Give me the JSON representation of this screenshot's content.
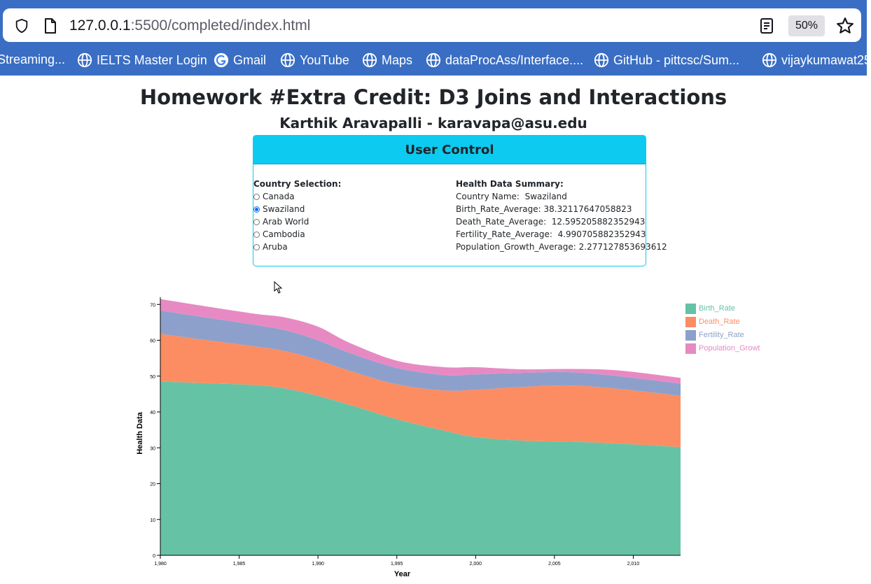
{
  "browser": {
    "url_host": "127.0.0.1",
    "url_path": ":5500/completed/index.html",
    "zoom": "50%",
    "bookmarks": [
      {
        "label": "Streaming...",
        "icon": "none"
      },
      {
        "label": "IELTS Master Login",
        "icon": "globe-icon"
      },
      {
        "label": "Gmail",
        "icon": "google-icon"
      },
      {
        "label": "YouTube",
        "icon": "globe-icon"
      },
      {
        "label": "Maps",
        "icon": "globe-icon"
      },
      {
        "label": "dataProcAss/Interface....",
        "icon": "globe-icon"
      },
      {
        "label": "GitHub - pittcsc/Sum...",
        "icon": "globe-icon"
      },
      {
        "label": "vijaykumawat25",
        "icon": "globe-icon"
      }
    ]
  },
  "page": {
    "title": "Homework #Extra Credit: D3 Joins and Interactions",
    "subtitle": "Karthik Aravapalli - karavapa@asu.edu"
  },
  "control": {
    "header": "User Control",
    "selection_label": "Country Selection:",
    "countries": [
      "Canada",
      "Swaziland",
      "Arab World",
      "Cambodia",
      "Aruba"
    ],
    "selected": "Swaziland",
    "summary_label": "Health Data Summary:",
    "summary": [
      {
        "key": "Country Name:",
        "value": "Swaziland"
      },
      {
        "key": "Birth_Rate_Average:",
        "value": "38.32117647058823"
      },
      {
        "key": "Death_Rate_Average:",
        "value": "12.595205882352943"
      },
      {
        "key": "Fertility_Rate_Average:",
        "value": "4.990705882352943"
      },
      {
        "key": "Population_Growth_Average:",
        "value": "2.277127853693612"
      }
    ]
  },
  "colors": {
    "birth": "#66c2a5",
    "death": "#fc8d62",
    "fertility": "#8da0cb",
    "population": "#e78ac3"
  },
  "chart_data": {
    "type": "area",
    "stacked": true,
    "xlabel": "Year",
    "ylabel": "Health Data",
    "xlim": [
      1980,
      2013
    ],
    "ylim": [
      0,
      72
    ],
    "x_ticks": [
      "1,980",
      "1,985",
      "1,990",
      "1,995",
      "2,000",
      "2,005",
      "2,010"
    ],
    "y_ticks": [
      "0",
      "10",
      "20",
      "30",
      "40",
      "50",
      "60",
      "70"
    ],
    "legend_placement": "top-right",
    "x": [
      1980,
      1983,
      1986,
      1988,
      1990,
      1992,
      1995,
      1998,
      2000,
      2003,
      2006,
      2009,
      2013
    ],
    "series": [
      {
        "name": "Birth_Rate",
        "values": [
          48.5,
          48.0,
          47.5,
          46.5,
          44.5,
          42.0,
          38.0,
          34.8,
          33.0,
          32.0,
          31.7,
          31.2,
          30.2
        ]
      },
      {
        "name": "Death_Rate",
        "values": [
          13.3,
          12.0,
          10.8,
          10.4,
          10.0,
          9.5,
          9.7,
          11.2,
          13.2,
          15.0,
          15.7,
          15.3,
          14.3
        ]
      },
      {
        "name": "Fertility_Rate",
        "values": [
          6.5,
          6.3,
          6.0,
          5.8,
          5.5,
          5.0,
          4.6,
          4.3,
          4.3,
          3.9,
          3.7,
          3.5,
          3.4
        ]
      },
      {
        "name": "Population_Growt",
        "values": [
          3.2,
          3.1,
          3.1,
          3.6,
          3.8,
          2.8,
          2.0,
          2.2,
          2.0,
          1.0,
          0.9,
          1.6,
          1.6
        ]
      }
    ]
  }
}
